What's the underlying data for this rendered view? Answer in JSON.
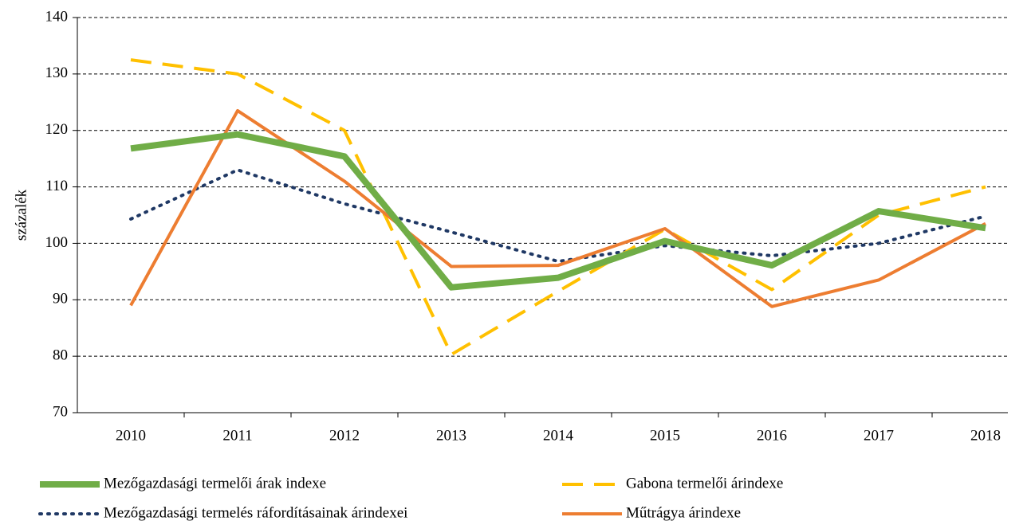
{
  "chart_data": {
    "type": "line",
    "y_label": "százalék",
    "categories": [
      "2010",
      "2011",
      "2012",
      "2013",
      "2014",
      "2015",
      "2016",
      "2017",
      "2018"
    ],
    "series": [
      {
        "name": "Mezőgazdasági termelői árak indexe",
        "color": "#70ad47",
        "dash": "solid",
        "values": [
          116.8,
          119.3,
          115.4,
          92.2,
          93.9,
          100.4,
          96.1,
          105.7,
          102.7
        ]
      },
      {
        "name": "Gabona termelői árindexe",
        "color": "#ffc000",
        "dash": "dashed",
        "values": [
          132.5,
          130.0,
          120.0,
          80.3,
          91.5,
          102.5,
          91.8,
          105.0,
          110.0
        ]
      },
      {
        "name": "Mezőgazdasági termelés ráfordításainak árindexei",
        "color": "#1f3864",
        "dash": "dotted",
        "values": [
          104.3,
          113.0,
          107.0,
          102.0,
          96.8,
          99.6,
          97.8,
          100.0,
          104.8
        ]
      },
      {
        "name": "Műtrágya árindexe",
        "color": "#ed7d31",
        "dash": "solid",
        "values": [
          89.0,
          123.5,
          111.0,
          95.9,
          96.1,
          102.6,
          88.8,
          93.5,
          103.5
        ]
      }
    ],
    "ylim": [
      70,
      140
    ],
    "yticks": [
      70,
      80,
      90,
      100,
      110,
      120,
      130,
      140
    ],
    "grid": true
  }
}
